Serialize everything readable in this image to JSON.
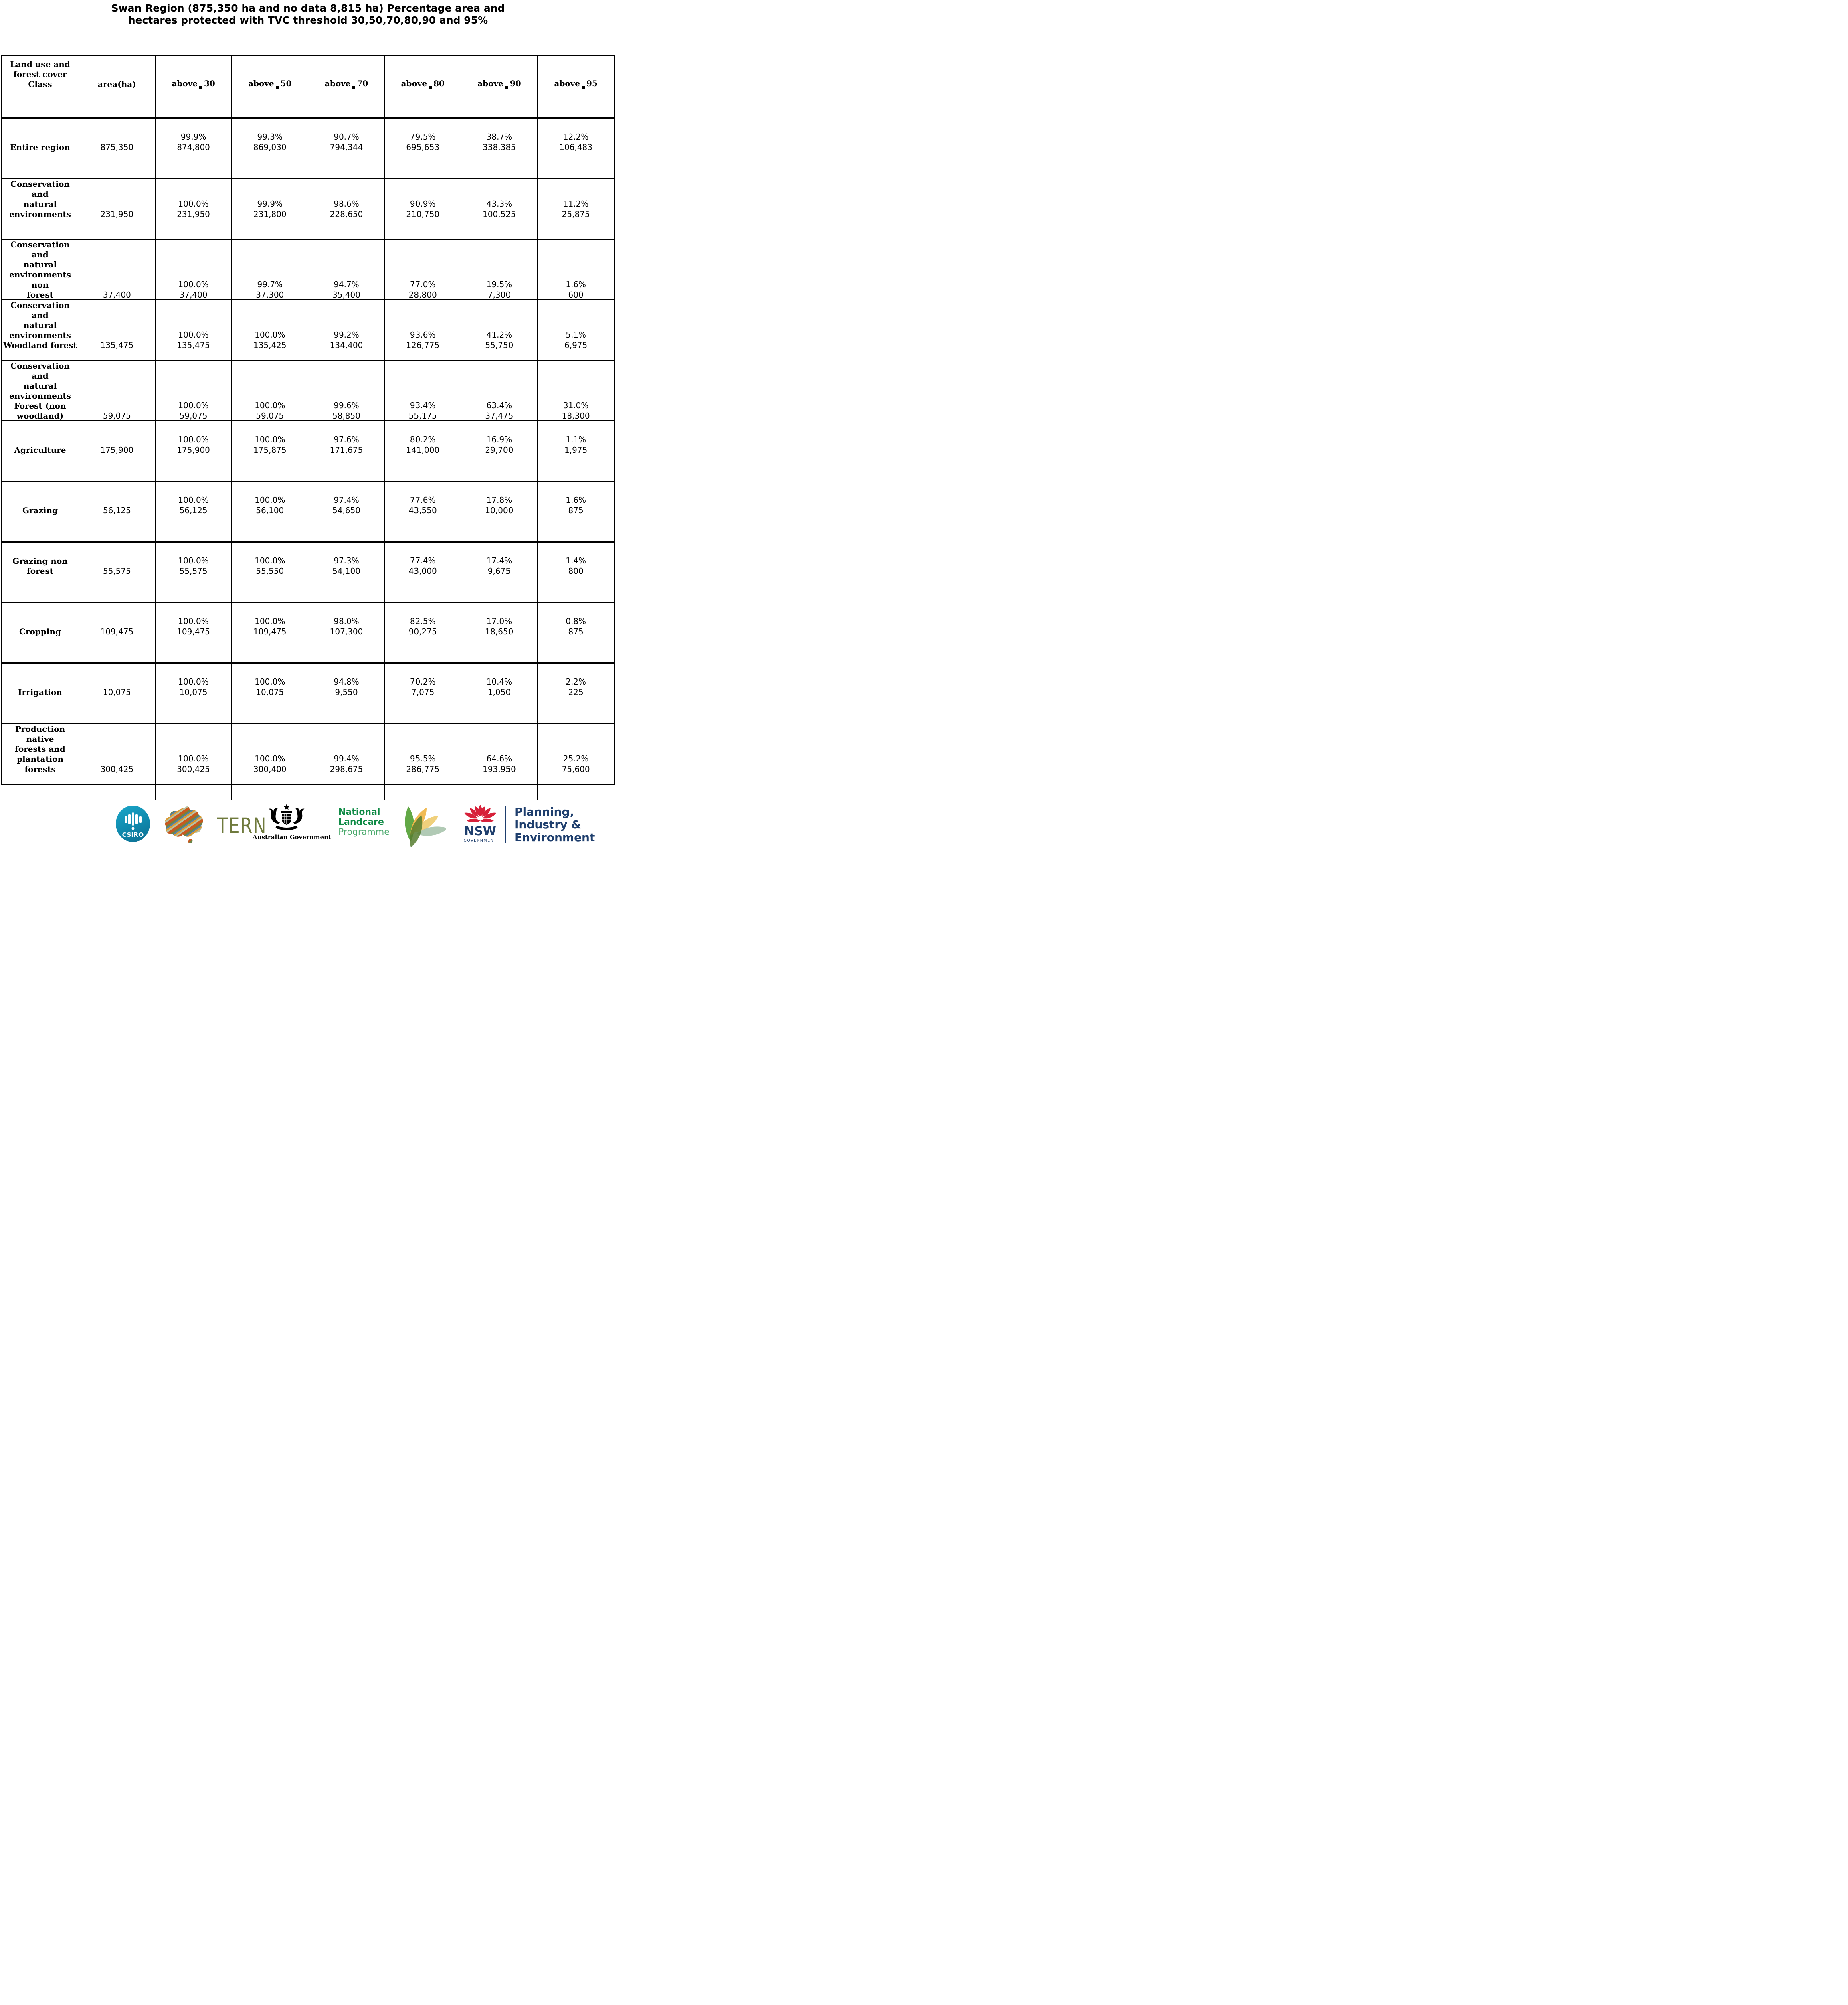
{
  "title": {
    "line1": "Swan Region (875,350 ha and no data 8,815 ha) Percentage area and",
    "line2": "hectares protected with TVC threshold 30,50,70,80,90 and 95%"
  },
  "table": {
    "columns": [
      "Land use and\nforest cover\nClass",
      "area(ha)",
      "above_30",
      "above_50",
      "above_70",
      "above_80",
      "above_90",
      "above_95"
    ],
    "rows": [
      {
        "label": "Entire region",
        "area": "875,350",
        "cells": [
          {
            "pct": "99.9%",
            "ha": "874,800"
          },
          {
            "pct": "99.3%",
            "ha": "869,030"
          },
          {
            "pct": "90.7%",
            "ha": "794,344"
          },
          {
            "pct": "79.5%",
            "ha": "695,653"
          },
          {
            "pct": "38.7%",
            "ha": "338,385"
          },
          {
            "pct": "12.2%",
            "ha": "106,483"
          }
        ]
      },
      {
        "label": "Conservation and\nnatural\nenvironments",
        "area": "231,950",
        "cells": [
          {
            "pct": "100.0%",
            "ha": "231,950"
          },
          {
            "pct": "99.9%",
            "ha": "231,800"
          },
          {
            "pct": "98.6%",
            "ha": "228,650"
          },
          {
            "pct": "90.9%",
            "ha": "210,750"
          },
          {
            "pct": "43.3%",
            "ha": "100,525"
          },
          {
            "pct": "11.2%",
            "ha": "25,875"
          }
        ]
      },
      {
        "label": "Conservation and\nnatural\nenvironments non\nforest",
        "area": "37,400",
        "cells": [
          {
            "pct": "100.0%",
            "ha": "37,400"
          },
          {
            "pct": "99.7%",
            "ha": "37,300"
          },
          {
            "pct": "94.7%",
            "ha": "35,400"
          },
          {
            "pct": "77.0%",
            "ha": "28,800"
          },
          {
            "pct": "19.5%",
            "ha": "7,300"
          },
          {
            "pct": "1.6%",
            "ha": "600"
          }
        ]
      },
      {
        "label": "Conservation and\nnatural\nenvironments\nWoodland forest",
        "area": "135,475",
        "cells": [
          {
            "pct": "100.0%",
            "ha": "135,475"
          },
          {
            "pct": "100.0%",
            "ha": "135,425"
          },
          {
            "pct": "99.2%",
            "ha": "134,400"
          },
          {
            "pct": "93.6%",
            "ha": "126,775"
          },
          {
            "pct": "41.2%",
            "ha": "55,750"
          },
          {
            "pct": "5.1%",
            "ha": "6,975"
          }
        ]
      },
      {
        "label": "Conservation and\nnatural\nenvironments\nForest (non\nwoodland)",
        "area": "59,075",
        "cells": [
          {
            "pct": "100.0%",
            "ha": "59,075"
          },
          {
            "pct": "100.0%",
            "ha": "59,075"
          },
          {
            "pct": "99.6%",
            "ha": "58,850"
          },
          {
            "pct": "93.4%",
            "ha": "55,175"
          },
          {
            "pct": "63.4%",
            "ha": "37,475"
          },
          {
            "pct": "31.0%",
            "ha": "18,300"
          }
        ]
      },
      {
        "label": "Agriculture",
        "area": "175,900",
        "cells": [
          {
            "pct": "100.0%",
            "ha": "175,900"
          },
          {
            "pct": "100.0%",
            "ha": "175,875"
          },
          {
            "pct": "97.6%",
            "ha": "171,675"
          },
          {
            "pct": "80.2%",
            "ha": "141,000"
          },
          {
            "pct": "16.9%",
            "ha": "29,700"
          },
          {
            "pct": "1.1%",
            "ha": "1,975"
          }
        ]
      },
      {
        "label": "Grazing",
        "area": "56,125",
        "cells": [
          {
            "pct": "100.0%",
            "ha": "56,125"
          },
          {
            "pct": "100.0%",
            "ha": "56,100"
          },
          {
            "pct": "97.4%",
            "ha": "54,650"
          },
          {
            "pct": "77.6%",
            "ha": "43,550"
          },
          {
            "pct": "17.8%",
            "ha": "10,000"
          },
          {
            "pct": "1.6%",
            "ha": "875"
          }
        ]
      },
      {
        "label": "Grazing non\nforest",
        "area": "55,575",
        "cells": [
          {
            "pct": "100.0%",
            "ha": "55,575"
          },
          {
            "pct": "100.0%",
            "ha": "55,550"
          },
          {
            "pct": "97.3%",
            "ha": "54,100"
          },
          {
            "pct": "77.4%",
            "ha": "43,000"
          },
          {
            "pct": "17.4%",
            "ha": "9,675"
          },
          {
            "pct": "1.4%",
            "ha": "800"
          }
        ]
      },
      {
        "label": "Cropping",
        "area": "109,475",
        "cells": [
          {
            "pct": "100.0%",
            "ha": "109,475"
          },
          {
            "pct": "100.0%",
            "ha": "109,475"
          },
          {
            "pct": "98.0%",
            "ha": "107,300"
          },
          {
            "pct": "82.5%",
            "ha": "90,275"
          },
          {
            "pct": "17.0%",
            "ha": "18,650"
          },
          {
            "pct": "0.8%",
            "ha": "875"
          }
        ]
      },
      {
        "label": "Irrigation",
        "area": "10,075",
        "cells": [
          {
            "pct": "100.0%",
            "ha": "10,075"
          },
          {
            "pct": "100.0%",
            "ha": "10,075"
          },
          {
            "pct": "94.8%",
            "ha": "9,550"
          },
          {
            "pct": "70.2%",
            "ha": "7,075"
          },
          {
            "pct": "10.4%",
            "ha": "1,050"
          },
          {
            "pct": "2.2%",
            "ha": "225"
          }
        ]
      },
      {
        "label": "Production native\nforests and\nplantation\nforests",
        "area": "300,425",
        "cells": [
          {
            "pct": "100.0%",
            "ha": "300,425"
          },
          {
            "pct": "100.0%",
            "ha": "300,400"
          },
          {
            "pct": "99.4%",
            "ha": "298,675"
          },
          {
            "pct": "95.5%",
            "ha": "286,775"
          },
          {
            "pct": "64.6%",
            "ha": "193,950"
          },
          {
            "pct": "25.2%",
            "ha": "75,600"
          }
        ]
      }
    ]
  },
  "footer": {
    "csiro_label": "CSIRO",
    "tern_label": "TERN",
    "aus_gov_label": "Australian Government",
    "landcare_lines": [
      "National",
      "Landcare",
      "Programme"
    ],
    "nsw_label": "NSW",
    "nsw_sub_label": "GOVERNMENT",
    "dpie_lines": [
      "Planning,",
      "Industry &",
      "Environment"
    ]
  },
  "colors": {
    "csiro_teal": "#0f89ad",
    "tern_olive": "#6f7a3d",
    "landcare_green": "#0e8a45",
    "landcare_light_green": "#4aa96c",
    "nsw_navy": "#1e3e6d",
    "nsw_red": "#d7213a",
    "table_border": "#000000"
  }
}
